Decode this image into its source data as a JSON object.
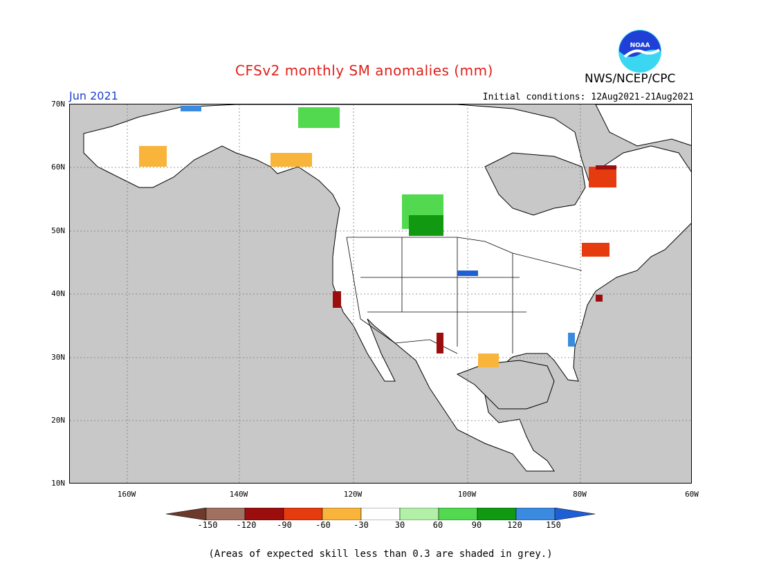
{
  "title": "CFSv2 monthly SM anomalies (mm)",
  "org": "NWS/NCEP/CPC",
  "logo_text": "NOAA",
  "month": "Jun 2021",
  "initial_conditions": "Initial conditions: 12Aug2021-21Aug2021",
  "lat_labels": [
    "70N",
    "60N",
    "50N",
    "40N",
    "30N",
    "20N",
    "10N"
  ],
  "lon_labels": [
    "160W",
    "140W",
    "120W",
    "100W",
    "80W",
    "60W"
  ],
  "colorbar": {
    "labels": [
      "-150",
      "-120",
      "-90",
      "-60",
      "-30",
      "30",
      "60",
      "90",
      "120",
      "150"
    ],
    "colors": [
      "#6b3a2a",
      "#a07060",
      "#9c0d0d",
      "#e63a0f",
      "#f9b43b",
      "#ffffff",
      "#b2f0a8",
      "#52d94f",
      "#129912",
      "#3a8be0",
      "#1f5fd6"
    ]
  },
  "note": "(Areas of expected skill less than 0.3 are shaded in grey.)",
  "colors": {
    "ocean": "#c8c8c8",
    "land": "#ffffff",
    "grid": "#7a7a7a",
    "title": "#e0201a",
    "month": "#1a3fd1"
  }
}
